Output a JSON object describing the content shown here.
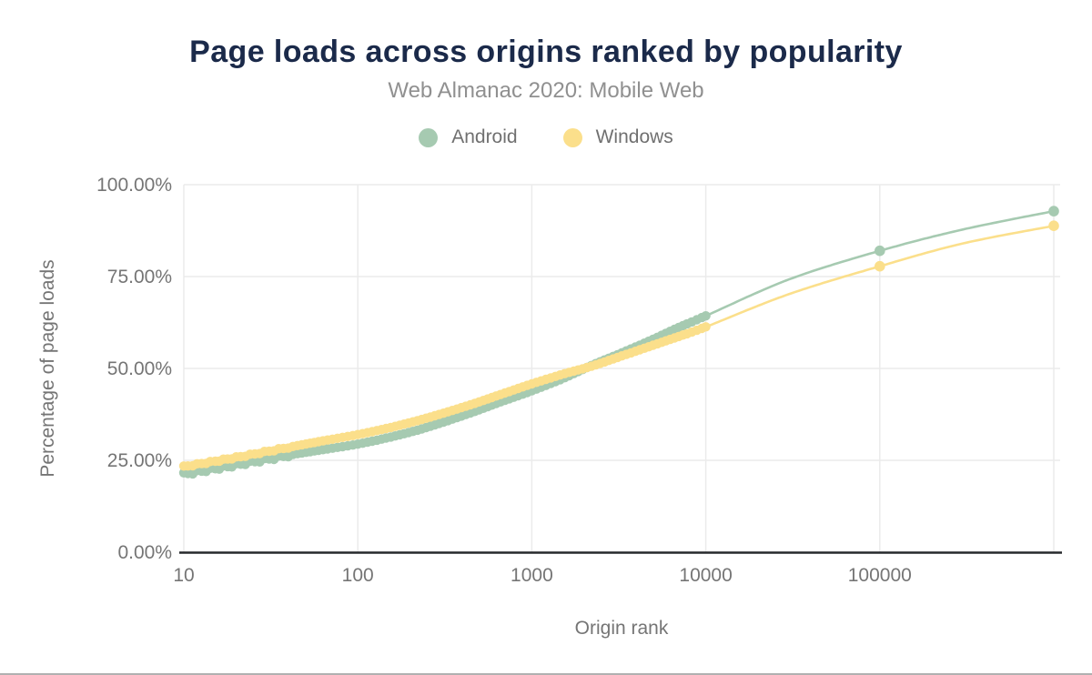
{
  "header": {
    "title": "Page loads across origins ranked by popularity",
    "subtitle": "Web Almanac 2020: Mobile Web"
  },
  "chart_data": {
    "type": "line",
    "title": "Page loads across origins ranked by popularity",
    "subtitle": "Web Almanac 2020: Mobile Web",
    "xlabel": "Origin rank",
    "ylabel": "Percentage of page loads",
    "x_scale": "log",
    "grid": true,
    "legend_position": "top",
    "ylim": [
      0,
      100
    ],
    "y_tick_labels": [
      "0.00%",
      "25.00%",
      "50.00%",
      "75.00%",
      "100.00%"
    ],
    "y_tick_values": [
      0,
      25,
      50,
      75,
      100
    ],
    "x_tick_labels": [
      "10",
      "100",
      "1000",
      "10000",
      "100000"
    ],
    "x_tick_values": [
      10,
      100,
      1000,
      10000,
      100000
    ],
    "x_gridline_ranks": [
      10,
      100,
      1000,
      10000,
      100000,
      1000000
    ],
    "dense_band_max_rank": 10000,
    "marker_ranks": [
      100000,
      1000000
    ],
    "series": [
      {
        "name": "Android",
        "color": "#a6cab1",
        "points": [
          [
            10,
            21.3
          ],
          [
            14,
            22.5
          ],
          [
            20,
            23.8
          ],
          [
            30,
            25.3
          ],
          [
            45,
            26.8
          ],
          [
            65,
            28.0
          ],
          [
            100,
            29.4
          ],
          [
            150,
            31.2
          ],
          [
            220,
            33.2
          ],
          [
            320,
            35.6
          ],
          [
            470,
            38.3
          ],
          [
            680,
            41.1
          ],
          [
            1000,
            43.9
          ],
          [
            1500,
            47.2
          ],
          [
            2200,
            50.8
          ],
          [
            3200,
            54.0
          ],
          [
            4700,
            57.4
          ],
          [
            6800,
            60.9
          ],
          [
            10000,
            64.3
          ],
          [
            30000,
            74.2
          ],
          [
            100000,
            82.0
          ],
          [
            300000,
            87.8
          ],
          [
            1000000,
            92.8
          ]
        ]
      },
      {
        "name": "Windows",
        "color": "#fbdf8b",
        "points": [
          [
            10,
            23.3
          ],
          [
            14,
            24.5
          ],
          [
            20,
            25.8
          ],
          [
            30,
            27.4
          ],
          [
            45,
            29.0
          ],
          [
            65,
            30.4
          ],
          [
            100,
            32.0
          ],
          [
            150,
            33.8
          ],
          [
            220,
            35.8
          ],
          [
            320,
            38.0
          ],
          [
            470,
            40.5
          ],
          [
            680,
            43.1
          ],
          [
            1000,
            45.8
          ],
          [
            1500,
            48.4
          ],
          [
            2200,
            50.6
          ],
          [
            3200,
            53.2
          ],
          [
            4700,
            55.9
          ],
          [
            6800,
            58.5
          ],
          [
            10000,
            61.3
          ],
          [
            30000,
            70.2
          ],
          [
            100000,
            77.8
          ],
          [
            300000,
            84.0
          ],
          [
            1000000,
            88.8
          ]
        ]
      }
    ],
    "colors": {
      "title": "#1b2a4a",
      "subtitle": "#909090",
      "tick_text": "#757575",
      "axis_title_text": "#757575",
      "gridline": "#ebebeb",
      "axis_line": "#26292c"
    }
  }
}
